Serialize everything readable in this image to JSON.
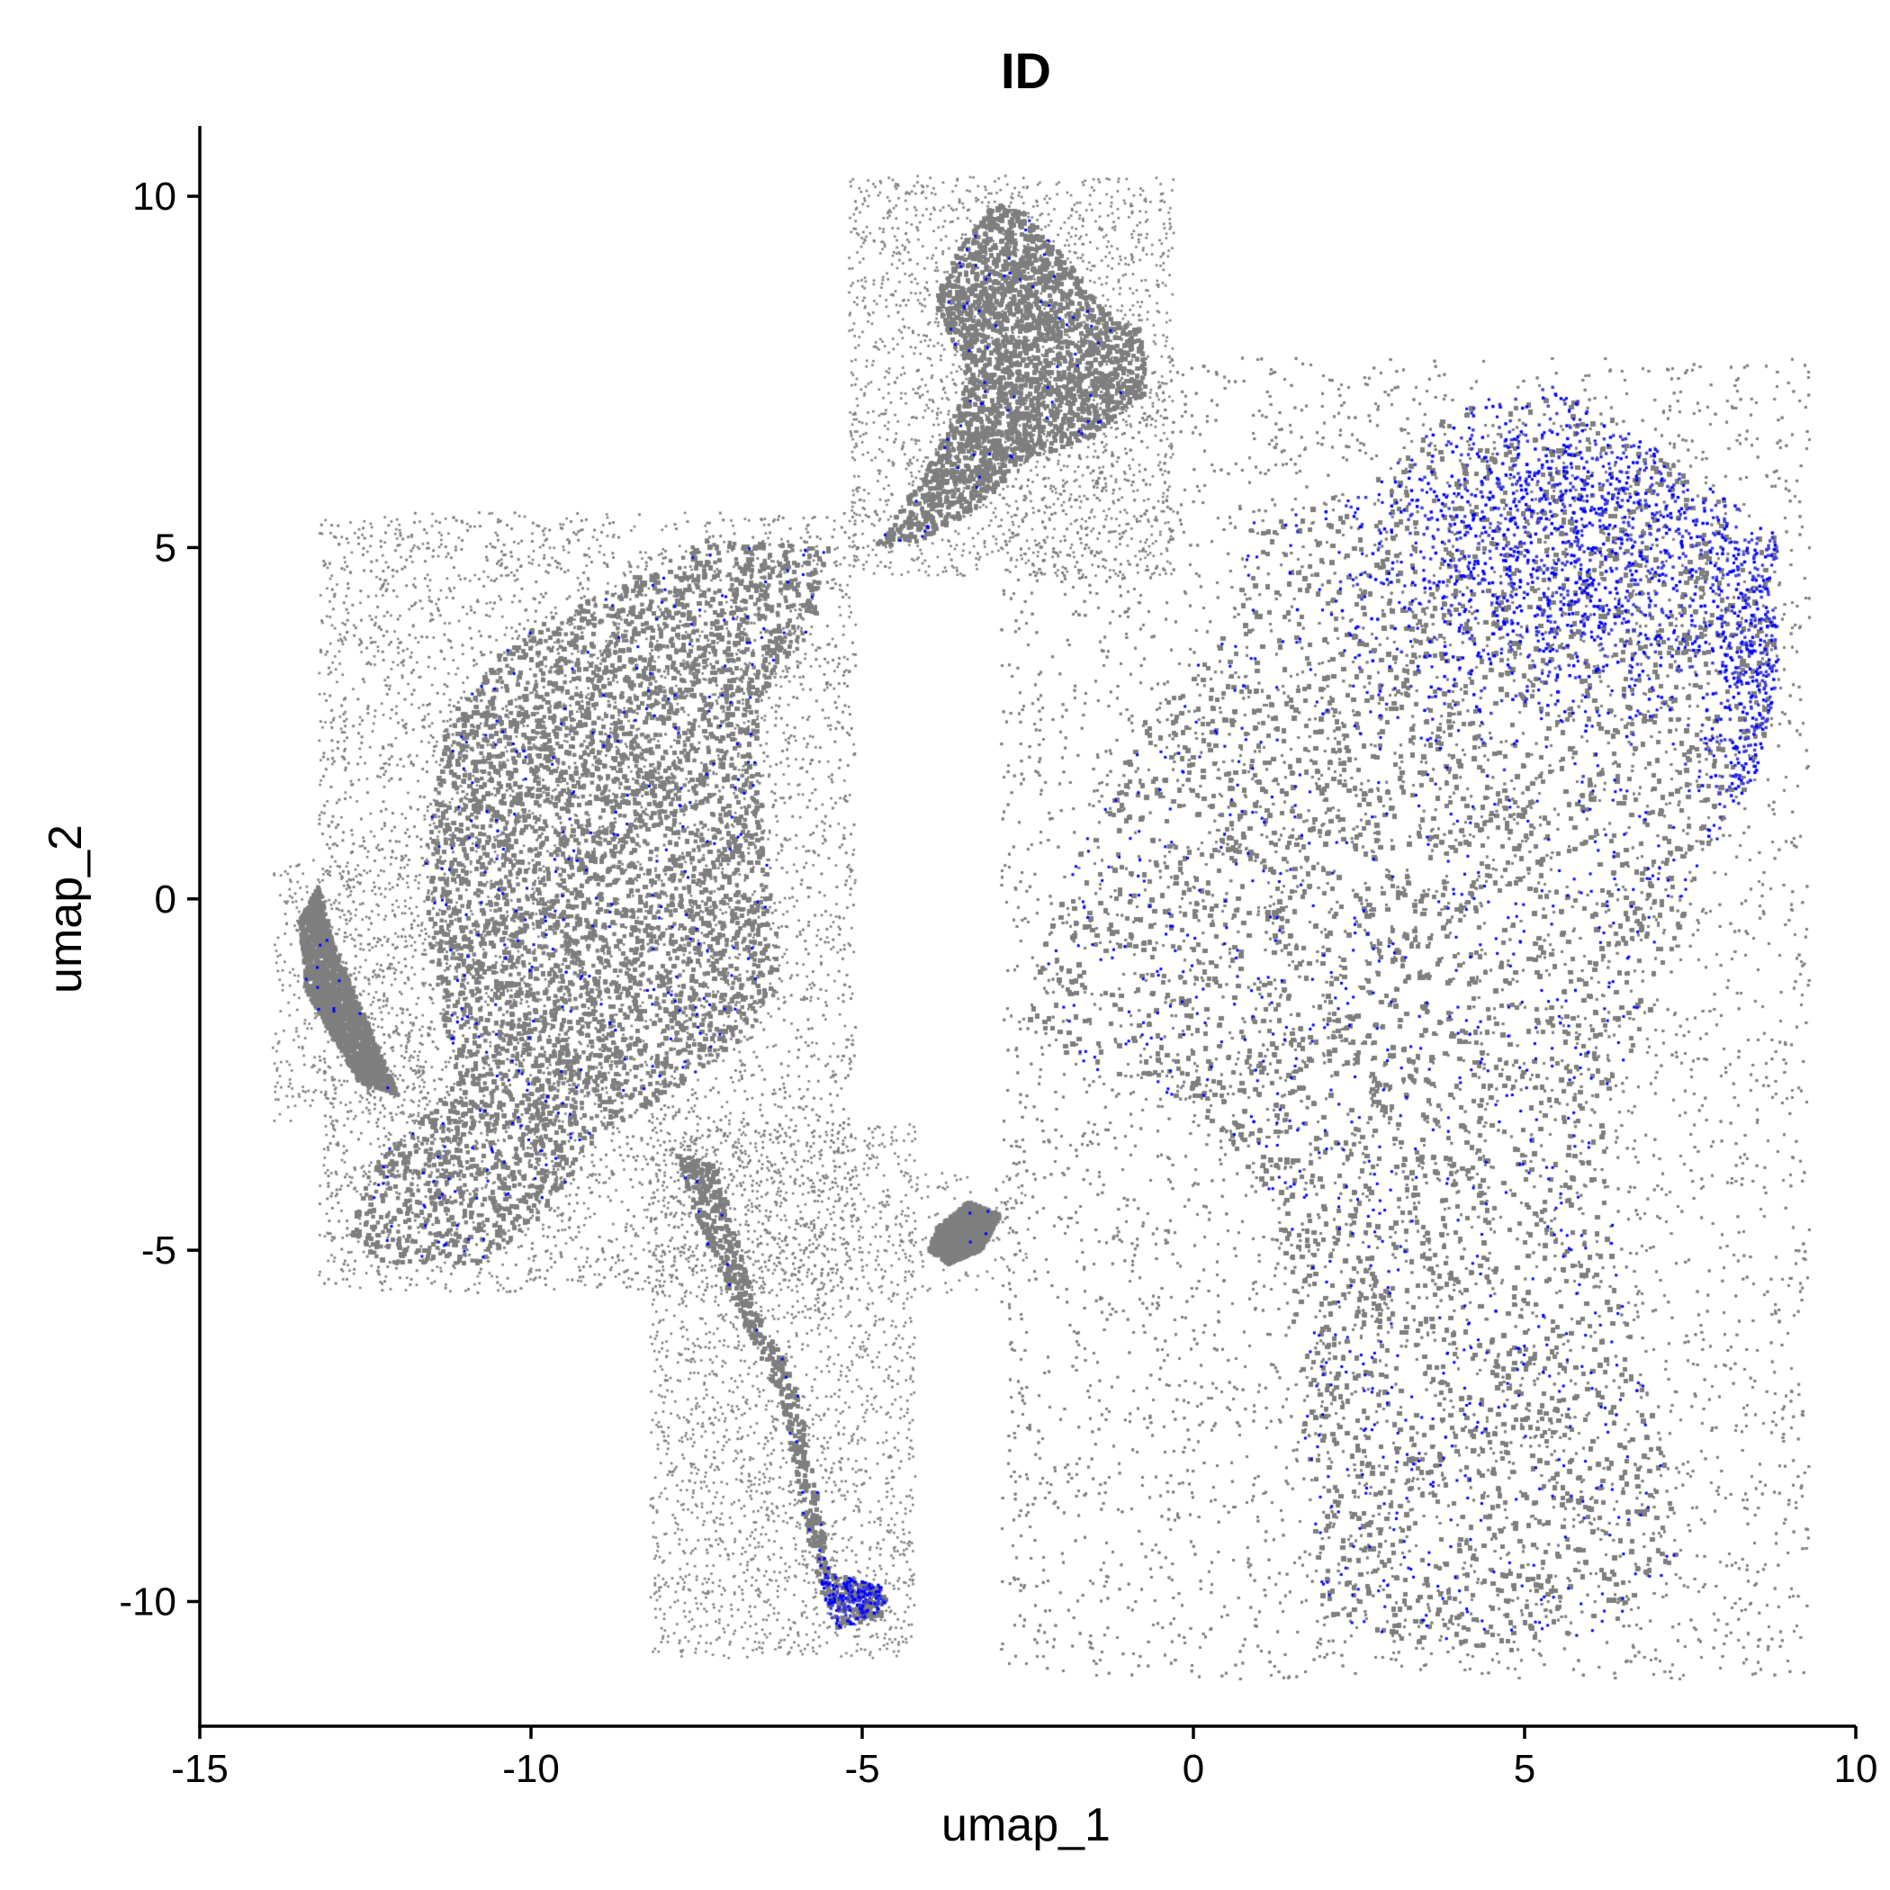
{
  "chart_data": {
    "type": "scatter",
    "title": "ID",
    "xlabel": "umap_1",
    "ylabel": "umap_2",
    "xlim": [
      -15,
      10
    ],
    "ylim": [
      -11.8,
      11
    ],
    "x_ticks": [
      -15,
      -10,
      -5,
      0,
      5,
      10
    ],
    "y_ticks": [
      -10,
      -5,
      0,
      5,
      10
    ],
    "x_tick_labels": [
      "-15",
      "-10",
      "-5",
      "0",
      "5",
      "10"
    ],
    "y_tick_labels": [
      "-10",
      "-5",
      "0",
      "5",
      "10"
    ],
    "grid": false,
    "legend": "none",
    "colors": {
      "low": "#7f7f7f",
      "high": "#0000ff"
    },
    "clusters": [
      {
        "name": "left-main-body",
        "outline": [
          [
            -11.3,
            2.5
          ],
          [
            -10.2,
            3.8
          ],
          [
            -9,
            4.3
          ],
          [
            -7.4,
            5.1
          ],
          [
            -5.5,
            5
          ],
          [
            -5.7,
            3.9
          ],
          [
            -6.6,
            2.8
          ],
          [
            -6.5,
            1
          ],
          [
            -6.2,
            -1.2
          ],
          [
            -6.8,
            -2
          ],
          [
            -7.8,
            -2.7
          ],
          [
            -9,
            -3.4
          ],
          [
            -9.8,
            -4.5
          ],
          [
            -10.8,
            -5.2
          ],
          [
            -12.2,
            -5.2
          ],
          [
            -12.8,
            -4.8
          ],
          [
            -12.4,
            -3.8
          ],
          [
            -11.1,
            -2.6
          ],
          [
            -11.5,
            -1
          ],
          [
            -11.6,
            0.6
          ]
        ]
      },
      {
        "name": "top-lobe",
        "outline": [
          [
            -3.6,
            9.2
          ],
          [
            -3,
            9.9
          ],
          [
            -2.6,
            9.8
          ],
          [
            -1.9,
            9.1
          ],
          [
            -1.4,
            8.4
          ],
          [
            -0.8,
            8.1
          ],
          [
            -0.7,
            7.2
          ],
          [
            -1.5,
            6.6
          ],
          [
            -2.6,
            6.2
          ],
          [
            -3.2,
            5.6
          ],
          [
            -4.1,
            5.1
          ],
          [
            -4.8,
            5
          ],
          [
            -3.9,
            6.3
          ],
          [
            -3.4,
            7.4
          ],
          [
            -3.9,
            8.5
          ]
        ]
      },
      {
        "name": "right-main-body",
        "outline": [
          [
            -2.5,
            -1.8
          ],
          [
            -2.2,
            -0.5
          ],
          [
            -1.6,
            0.9
          ],
          [
            -0.7,
            2.6
          ],
          [
            0.6,
            3.9
          ],
          [
            0.9,
            5.4
          ],
          [
            2.7,
            5.9
          ],
          [
            4.1,
            7.1
          ],
          [
            5.5,
            7.3
          ],
          [
            6.7,
            6.6
          ],
          [
            7.6,
            6
          ],
          [
            8.9,
            5.1
          ],
          [
            8.7,
            4.4
          ],
          [
            8.9,
            3.5
          ],
          [
            8.5,
            1.8
          ],
          [
            7.6,
            0.3
          ],
          [
            6.9,
            -1.6
          ],
          [
            6.2,
            -3
          ],
          [
            6.4,
            -5.5
          ],
          [
            7.2,
            -8.3
          ],
          [
            7.3,
            -9.6
          ],
          [
            6.2,
            -10.4
          ],
          [
            4.8,
            -10.7
          ],
          [
            3,
            -10.6
          ],
          [
            1.9,
            -10.1
          ],
          [
            1.7,
            -8
          ],
          [
            1.6,
            -6.8
          ],
          [
            1.4,
            -5.2
          ],
          [
            1.1,
            -4.1
          ],
          [
            0.1,
            -3.1
          ],
          [
            -0.7,
            -2.6
          ],
          [
            -1.9,
            -2.4
          ]
        ]
      },
      {
        "name": "left-small-arm",
        "outline": [
          [
            -13.5,
            -0.3
          ],
          [
            -13.2,
            0.2
          ],
          [
            -13,
            -0.6
          ],
          [
            -12.5,
            -1.7
          ],
          [
            -12,
            -2.8
          ],
          [
            -12.6,
            -2.6
          ],
          [
            -13.4,
            -1.3
          ]
        ]
      },
      {
        "name": "lower-stalk",
        "outline": [
          [
            -7.8,
            -3.6
          ],
          [
            -7.2,
            -3.8
          ],
          [
            -6.6,
            -5.8
          ],
          [
            -6,
            -6.9
          ],
          [
            -5.6,
            -8.8
          ],
          [
            -5.5,
            -9.6
          ],
          [
            -4.6,
            -9.8
          ],
          [
            -4.7,
            -10.2
          ],
          [
            -5.4,
            -10.4
          ],
          [
            -5.6,
            -9.9
          ],
          [
            -5.9,
            -8.8
          ],
          [
            -6.2,
            -7.2
          ],
          [
            -6.6,
            -6.4
          ],
          [
            -7.1,
            -5.4
          ],
          [
            -7.5,
            -4.6
          ]
        ]
      },
      {
        "name": "middle-blob",
        "outline": [
          [
            -3.9,
            -4.7
          ],
          [
            -3.4,
            -4.3
          ],
          [
            -2.9,
            -4.5
          ],
          [
            -3.2,
            -5
          ],
          [
            -3.7,
            -5.2
          ],
          [
            -4,
            -5
          ]
        ]
      }
    ],
    "high_regions": [
      {
        "name": "upper-right-enrichment",
        "center": [
          5.7,
          5.1
        ],
        "spread": [
          1.6,
          1.2
        ],
        "share": 0.6
      },
      {
        "name": "right-edge",
        "center": [
          8.5,
          3
        ],
        "spread": [
          0.4,
          1.5
        ],
        "share": 0.25
      },
      {
        "name": "bottom-tip",
        "center": [
          -5.1,
          -9.9
        ],
        "spread": [
          0.4,
          0.3
        ],
        "share": 0.15
      }
    ]
  }
}
